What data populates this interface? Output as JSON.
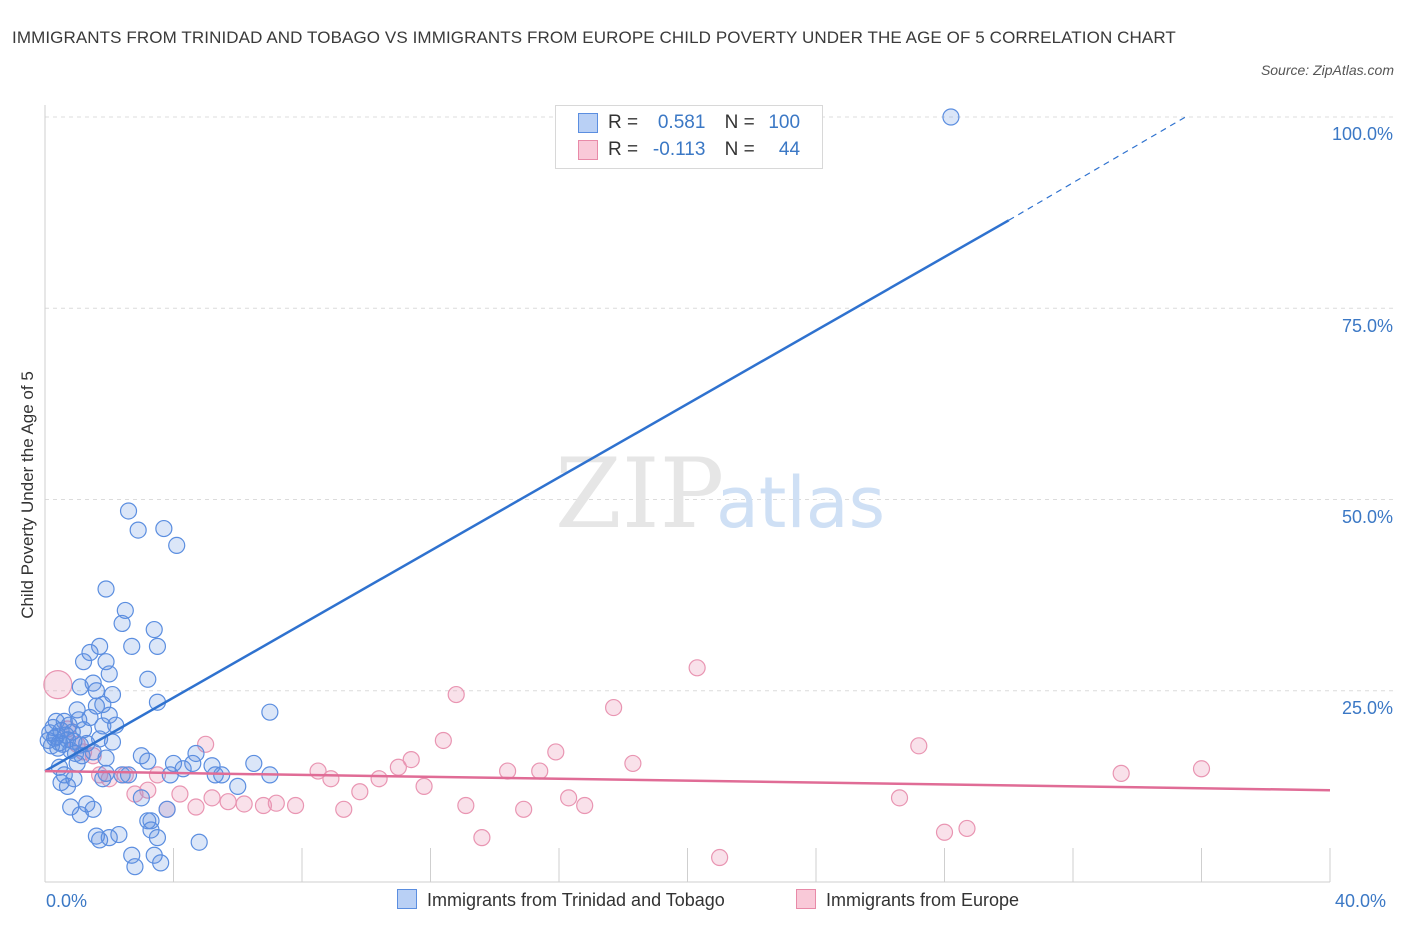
{
  "title": "IMMIGRANTS FROM TRINIDAD AND TOBAGO VS IMMIGRANTS FROM EUROPE CHILD POVERTY UNDER THE AGE OF 5 CORRELATION CHART",
  "source": "Source: ZipAtlas.com",
  "watermark": {
    "zip": "ZIP",
    "atlas": "atlas"
  },
  "legend": {
    "rows": [
      {
        "r_label": "R =",
        "r_value": "0.581",
        "n_label": "N =",
        "n_value": "100",
        "color": "#5b8ee0",
        "fill": "#b9d0f5"
      },
      {
        "r_label": "R =",
        "r_value": "-0.113",
        "n_label": "N =",
        "n_value": "44",
        "color": "#e88aa8",
        "fill": "#f9c9d8"
      }
    ]
  },
  "colors": {
    "blue_line": "#2f72cf",
    "pink_line": "#e06c96",
    "blue_point": "#5b8ee0",
    "pink_point": "#e995b2",
    "tick": "#3b78c5",
    "grid": "#dcdcdc"
  },
  "chart_data": {
    "type": "scatter",
    "title": "IMMIGRANTS FROM TRINIDAD AND TOBAGO VS IMMIGRANTS FROM EUROPE CHILD POVERTY UNDER THE AGE OF 5 CORRELATION CHART",
    "xlabel": "",
    "ylabel": "Child Poverty Under the Age of 5",
    "xlim": [
      0,
      40
    ],
    "ylim": [
      0,
      100
    ],
    "x_tick_labels": [
      "0.0%",
      "40.0%"
    ],
    "y_tick_labels": [
      {
        "value": 25,
        "label": "25.0%"
      },
      {
        "value": 50,
        "label": "50.0%"
      },
      {
        "value": 75,
        "label": "75.0%"
      },
      {
        "value": 100,
        "label": "100.0%"
      }
    ],
    "grid": true,
    "legend_position": "top-center",
    "series": [
      {
        "name": "Immigrants from Trinidad and Tobago",
        "R": 0.581,
        "N": 100,
        "trend": {
          "x": [
            0,
            30
          ],
          "y": [
            14.5,
            86.5
          ],
          "dashed_to": {
            "x": 35.5,
            "y": 100
          }
        },
        "points": [
          [
            0.1,
            18.5
          ],
          [
            0.15,
            19.5
          ],
          [
            0.2,
            17.8
          ],
          [
            0.25,
            20.2
          ],
          [
            0.3,
            18.8
          ],
          [
            0.35,
            19.0
          ],
          [
            0.4,
            17.5
          ],
          [
            0.45,
            18.2
          ],
          [
            0.5,
            19.8
          ],
          [
            0.55,
            18.0
          ],
          [
            0.6,
            21.0
          ],
          [
            0.65,
            19.2
          ],
          [
            0.7,
            18.6
          ],
          [
            0.75,
            20.5
          ],
          [
            0.8,
            17.2
          ],
          [
            0.85,
            19.6
          ],
          [
            0.9,
            18.4
          ],
          [
            0.95,
            16.8
          ],
          [
            1.0,
            22.5
          ],
          [
            1.05,
            21.2
          ],
          [
            1.1,
            17.9
          ],
          [
            1.15,
            16.5
          ],
          [
            1.2,
            19.9
          ],
          [
            1.3,
            18.1
          ],
          [
            1.4,
            21.5
          ],
          [
            1.5,
            17.0
          ],
          [
            1.6,
            23.0
          ],
          [
            1.7,
            18.7
          ],
          [
            1.8,
            20.4
          ],
          [
            1.9,
            16.2
          ],
          [
            2.0,
            21.8
          ],
          [
            2.1,
            18.3
          ],
          [
            0.5,
            13.0
          ],
          [
            0.6,
            14.0
          ],
          [
            0.7,
            12.5
          ],
          [
            0.8,
            9.8
          ],
          [
            0.9,
            13.5
          ],
          [
            1.0,
            15.5
          ],
          [
            1.1,
            8.8
          ],
          [
            1.3,
            10.2
          ],
          [
            1.5,
            9.5
          ],
          [
            1.6,
            6.0
          ],
          [
            1.7,
            5.5
          ],
          [
            1.8,
            13.5
          ],
          [
            1.9,
            14.2
          ],
          [
            2.0,
            5.8
          ],
          [
            2.3,
            6.2
          ],
          [
            2.6,
            14.0
          ],
          [
            2.8,
            2.0
          ],
          [
            3.0,
            11.0
          ],
          [
            3.2,
            8.0
          ],
          [
            3.3,
            6.8
          ],
          [
            3.0,
            16.5
          ],
          [
            3.2,
            15.8
          ],
          [
            3.4,
            3.5
          ],
          [
            3.6,
            2.5
          ],
          [
            3.8,
            9.5
          ],
          [
            3.9,
            14.0
          ],
          [
            4.0,
            15.5
          ],
          [
            4.3,
            14.8
          ],
          [
            4.6,
            15.5
          ],
          [
            4.7,
            16.8
          ],
          [
            4.8,
            5.2
          ],
          [
            5.2,
            15.2
          ],
          [
            5.3,
            14.0
          ],
          [
            5.5,
            14.0
          ],
          [
            6.0,
            12.5
          ],
          [
            7.0,
            14.0
          ],
          [
            1.1,
            25.5
          ],
          [
            1.2,
            28.8
          ],
          [
            1.4,
            30.0
          ],
          [
            1.5,
            26.0
          ],
          [
            1.6,
            25.0
          ],
          [
            1.7,
            30.8
          ],
          [
            1.8,
            23.2
          ],
          [
            1.9,
            28.8
          ],
          [
            2.0,
            27.2
          ],
          [
            2.1,
            24.5
          ],
          [
            2.2,
            20.5
          ],
          [
            2.4,
            33.8
          ],
          [
            2.5,
            35.5
          ],
          [
            2.6,
            48.5
          ],
          [
            2.7,
            30.8
          ],
          [
            1.9,
            38.3
          ],
          [
            2.9,
            46.0
          ],
          [
            3.2,
            26.5
          ],
          [
            3.4,
            33.0
          ],
          [
            3.5,
            30.8
          ],
          [
            3.5,
            23.5
          ],
          [
            3.7,
            46.2
          ],
          [
            4.1,
            44.0
          ],
          [
            7.0,
            22.2
          ],
          [
            2.4,
            14.0
          ],
          [
            3.3,
            8.0
          ],
          [
            0.35,
            21.0
          ],
          [
            0.45,
            15.0
          ],
          [
            6.5,
            15.5
          ],
          [
            28.2,
            100.0
          ],
          [
            2.7,
            3.5
          ],
          [
            3.5,
            5.8
          ]
        ]
      },
      {
        "name": "Immigrants from Europe",
        "R": -0.113,
        "N": 44,
        "trend": {
          "x": [
            0,
            40
          ],
          "y": [
            14.5,
            12.0
          ]
        },
        "points": [
          [
            0.4,
            25.8
          ],
          [
            0.7,
            20.0
          ],
          [
            1.0,
            18.0
          ],
          [
            1.2,
            17.0
          ],
          [
            1.5,
            16.5
          ],
          [
            1.7,
            14.0
          ],
          [
            2.0,
            13.5
          ],
          [
            2.5,
            14.0
          ],
          [
            2.8,
            11.5
          ],
          [
            3.2,
            12.0
          ],
          [
            3.5,
            14.0
          ],
          [
            3.8,
            9.5
          ],
          [
            4.2,
            11.5
          ],
          [
            4.7,
            9.8
          ],
          [
            5.2,
            11.0
          ],
          [
            5.0,
            18.0
          ],
          [
            5.7,
            10.5
          ],
          [
            6.2,
            10.2
          ],
          [
            6.8,
            10.0
          ],
          [
            7.2,
            10.3
          ],
          [
            7.8,
            10.0
          ],
          [
            8.5,
            14.5
          ],
          [
            8.9,
            13.5
          ],
          [
            9.3,
            9.5
          ],
          [
            9.8,
            11.8
          ],
          [
            10.4,
            13.5
          ],
          [
            11.0,
            15.0
          ],
          [
            11.4,
            16.0
          ],
          [
            11.8,
            12.5
          ],
          [
            12.4,
            18.5
          ],
          [
            12.8,
            24.5
          ],
          [
            13.1,
            10.0
          ],
          [
            13.6,
            5.8
          ],
          [
            14.4,
            14.5
          ],
          [
            14.9,
            9.5
          ],
          [
            15.4,
            14.5
          ],
          [
            15.9,
            17.0
          ],
          [
            16.3,
            11.0
          ],
          [
            16.8,
            10.0
          ],
          [
            17.7,
            22.8
          ],
          [
            18.3,
            15.5
          ],
          [
            20.3,
            28.0
          ],
          [
            21.0,
            3.2
          ],
          [
            26.6,
            11.0
          ]
        ]
      }
    ],
    "extra_points_europe": [
      [
        27.2,
        17.8
      ],
      [
        28.0,
        6.5
      ],
      [
        28.7,
        7.0
      ],
      [
        33.5,
        14.2
      ],
      [
        36.0,
        14.8
      ]
    ]
  },
  "bottom_legend": {
    "items": [
      {
        "label": "Immigrants from Trinidad and Tobago"
      },
      {
        "label": "Immigrants from Europe"
      }
    ]
  }
}
